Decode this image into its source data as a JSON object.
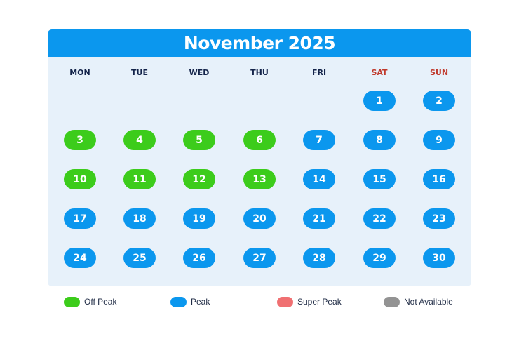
{
  "calendar": {
    "title": "November 2025",
    "weekdays": [
      "MON",
      "TUE",
      "WED",
      "THU",
      "FRI",
      "SAT",
      "SUN"
    ],
    "weekend_color": "#c0392b",
    "header_color": "#0b97ee",
    "first_weekday_index": 5,
    "days": [
      {
        "day": "1",
        "status": "peak"
      },
      {
        "day": "2",
        "status": "peak"
      },
      {
        "day": "3",
        "status": "off_peak"
      },
      {
        "day": "4",
        "status": "off_peak"
      },
      {
        "day": "5",
        "status": "off_peak"
      },
      {
        "day": "6",
        "status": "off_peak"
      },
      {
        "day": "7",
        "status": "peak"
      },
      {
        "day": "8",
        "status": "peak"
      },
      {
        "day": "9",
        "status": "peak"
      },
      {
        "day": "10",
        "status": "off_peak"
      },
      {
        "day": "11",
        "status": "off_peak"
      },
      {
        "day": "12",
        "status": "off_peak"
      },
      {
        "day": "13",
        "status": "off_peak"
      },
      {
        "day": "14",
        "status": "peak"
      },
      {
        "day": "15",
        "status": "peak"
      },
      {
        "day": "16",
        "status": "peak"
      },
      {
        "day": "17",
        "status": "peak"
      },
      {
        "day": "18",
        "status": "peak"
      },
      {
        "day": "19",
        "status": "peak"
      },
      {
        "day": "20",
        "status": "peak"
      },
      {
        "day": "21",
        "status": "peak"
      },
      {
        "day": "22",
        "status": "peak"
      },
      {
        "day": "23",
        "status": "peak"
      },
      {
        "day": "24",
        "status": "peak"
      },
      {
        "day": "25",
        "status": "peak"
      },
      {
        "day": "26",
        "status": "peak"
      },
      {
        "day": "27",
        "status": "peak"
      },
      {
        "day": "28",
        "status": "peak"
      },
      {
        "day": "29",
        "status": "peak"
      },
      {
        "day": "30",
        "status": "peak"
      }
    ]
  },
  "legend": [
    {
      "key": "off_peak",
      "label": "Off Peak",
      "color": "#3ccc1b"
    },
    {
      "key": "peak",
      "label": "Peak",
      "color": "#0b97ee"
    },
    {
      "key": "super_peak",
      "label": "Super Peak",
      "color": "#f07072"
    },
    {
      "key": "not_available",
      "label": "Not Available",
      "color": "#939393"
    }
  ]
}
